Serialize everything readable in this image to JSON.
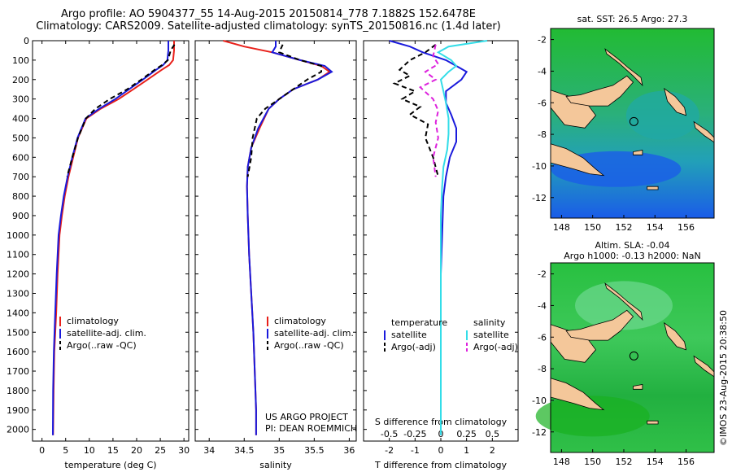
{
  "header": {
    "line1": "Argo profile: AO 5904377_55 14-Aug-2015 20150814_778 7.1882S 152.6478E",
    "line2": "Climatology: CARS2009. Satellite-adjusted climatology: synTS_20150816.nc (1.4d later)"
  },
  "project": {
    "line1": "US ARGO PROJECT",
    "line2": "PI: DEAN ROEMMICH"
  },
  "side_label": "©IMOS 23-Aug-2015 20:38:50",
  "colors": {
    "climatology": "#e8201a",
    "satellite": "#1a1adc",
    "argo": "#000000",
    "sat_salinity": "#33dde8",
    "argo_salinity": "#dd22dd",
    "land": "#f4c79a",
    "ocean_high": "#22bb33",
    "ocean_low": "#1a5ce8"
  },
  "chart_data": [
    {
      "type": "line",
      "xlabel": "temperature (deg C)",
      "ylabel": "",
      "xticks": [
        "0",
        "5",
        "10",
        "15",
        "20",
        "25",
        "30"
      ],
      "yticks": [
        "0",
        "100",
        "200",
        "300",
        "400",
        "500",
        "600",
        "700",
        "800",
        "900",
        "1000",
        "1100",
        "1200",
        "1300",
        "1400",
        "1500",
        "1600",
        "1700",
        "1800",
        "1900",
        "2000"
      ],
      "xlim": [
        -2,
        31
      ],
      "ylim": [
        2060,
        0
      ],
      "legend": [
        "climatology",
        "satellite-adj. clim.",
        "Argo(..raw -QC)"
      ],
      "legend_loc": "lower-center",
      "series": [
        {
          "name": "climatology",
          "color": "red",
          "x": [
            27.9,
            27.9,
            27.7,
            26.9,
            25.3,
            22.3,
            19.3,
            16.2,
            12.4,
            9.4,
            7.6,
            6.6,
            5.6,
            4.8,
            4.2,
            3.7,
            3.3,
            3.0,
            2.6,
            2.45,
            2.35
          ],
          "y": [
            0,
            50,
            100,
            125,
            150,
            200,
            250,
            300,
            350,
            400,
            500,
            600,
            700,
            800,
            900,
            1000,
            1200,
            1400,
            1600,
            1800,
            2030
          ]
        },
        {
          "name": "satellite-adj. clim.",
          "color": "blue",
          "x": [
            26.7,
            26.7,
            26.5,
            25.6,
            24.1,
            21.3,
            18.4,
            15.5,
            12.1,
            9.2,
            7.5,
            6.4,
            5.4,
            4.6,
            4.0,
            3.5,
            3.1,
            2.8,
            2.5,
            2.35,
            2.3
          ],
          "y": [
            0,
            50,
            100,
            125,
            150,
            200,
            250,
            300,
            350,
            400,
            500,
            600,
            700,
            800,
            900,
            1000,
            1200,
            1400,
            1600,
            1800,
            2030
          ]
        },
        {
          "name": "Argo(..raw -QC)",
          "color": "black",
          "x": [
            28.0,
            27.2,
            26.6,
            25.4,
            23.8,
            21.0,
            18.0,
            14.3,
            11.3,
            9.3,
            7.6,
            6.4,
            5.3
          ],
          "y": [
            20,
            50,
            100,
            125,
            150,
            200,
            250,
            300,
            350,
            400,
            500,
            600,
            700
          ]
        }
      ]
    },
    {
      "type": "line",
      "xlabel": "salinity",
      "xticks": [
        "34",
        "34.5",
        "35",
        "35.5",
        "36"
      ],
      "xlim": [
        33.8,
        36.1
      ],
      "ylim": [
        2060,
        0
      ],
      "legend": [
        "climatology",
        "satellite-adj. clim.",
        "Argo(..raw -QC)"
      ],
      "legend_loc": "lower-right",
      "series": [
        {
          "name": "climatology",
          "color": "red",
          "x": [
            34.2,
            34.5,
            34.9,
            35.3,
            35.6,
            35.72,
            35.55,
            35.2,
            35.0,
            34.85,
            34.72,
            34.6,
            34.55,
            34.54,
            34.55,
            34.57,
            34.6,
            34.63,
            34.65,
            34.67,
            34.67
          ],
          "y": [
            0,
            30,
            60,
            100,
            130,
            160,
            200,
            250,
            300,
            350,
            450,
            550,
            650,
            750,
            900,
            1100,
            1300,
            1500,
            1700,
            1900,
            2030
          ]
        },
        {
          "name": "satellite-adj. clim.",
          "color": "blue",
          "x": [
            34.95,
            34.95,
            34.9,
            35.3,
            35.65,
            35.75,
            35.55,
            35.2,
            35.0,
            34.85,
            34.7,
            34.6,
            34.55,
            34.54,
            34.55,
            34.57,
            34.6,
            34.63,
            34.65,
            34.67,
            34.67
          ],
          "y": [
            0,
            30,
            60,
            100,
            130,
            160,
            200,
            250,
            300,
            350,
            450,
            550,
            650,
            750,
            900,
            1100,
            1300,
            1500,
            1700,
            1900,
            2030
          ]
        },
        {
          "name": "Argo(..raw -QC)",
          "color": "black",
          "x": [
            35.05,
            35.0,
            35.3,
            35.6,
            35.6,
            35.4,
            35.2,
            35.0,
            34.8,
            34.68,
            34.62,
            34.6,
            34.55
          ],
          "y": [
            20,
            60,
            100,
            130,
            160,
            200,
            250,
            300,
            350,
            400,
            500,
            600,
            700
          ]
        }
      ]
    },
    {
      "type": "line",
      "xlabel": "T difference from climatology",
      "xlabel_top": "S difference from climatology",
      "xticks": [
        "-2",
        "-1",
        "0",
        "1",
        "2"
      ],
      "xticks_top": [
        "-0.5",
        "-0.25",
        "0",
        "0.25",
        "0.5"
      ],
      "xlim": [
        -3,
        3
      ],
      "ylim": [
        2060,
        0
      ],
      "legend_titles": [
        "temperature",
        "salinity"
      ],
      "legend": [
        "satellite",
        "Argo(-adj)",
        "satellite",
        "Argo(-adj)"
      ],
      "legend_loc": "lower-center",
      "series": [
        {
          "name": "temperature satellite",
          "color": "blue",
          "x": [
            -2.0,
            -1.2,
            -0.7,
            0.2,
            0.6,
            1.0,
            0.8,
            0.2,
            0.2,
            0.4,
            0.6,
            0.6,
            0.35,
            0.2,
            0.1,
            0.05,
            0.0,
            0.0,
            0.0,
            0.0
          ],
          "y": [
            0,
            30,
            60,
            100,
            130,
            160,
            200,
            260,
            320,
            380,
            450,
            520,
            600,
            700,
            800,
            1000,
            1200,
            1500,
            1800,
            2030
          ]
        },
        {
          "name": "temperature Argo(-adj)",
          "color": "black",
          "x": [
            -0.2,
            -0.6,
            -1.2,
            -1.6,
            -1.2,
            -1.8,
            -1.0,
            -1.5,
            -0.8,
            -1.2,
            -0.5,
            -0.6,
            -0.3,
            -0.1
          ],
          "y": [
            20,
            60,
            100,
            150,
            180,
            220,
            260,
            300,
            340,
            380,
            430,
            500,
            600,
            700
          ]
        },
        {
          "name": "salinity satellite",
          "color": "cyan",
          "x": [
            1.8,
            0.3,
            -0.1,
            0.4,
            0.6,
            0.3,
            0.0,
            0.1,
            0.2,
            0.3,
            0.3,
            0.25,
            0.1,
            0.05,
            0.0,
            0.0,
            0.0,
            0.0
          ],
          "y": [
            0,
            30,
            60,
            100,
            130,
            160,
            200,
            260,
            320,
            400,
            480,
            560,
            650,
            750,
            900,
            1200,
            1600,
            2030
          ]
        },
        {
          "name": "salinity Argo(-adj)",
          "color": "magenta",
          "x": [
            -0.2,
            -0.3,
            -0.1,
            -0.6,
            -0.2,
            -0.8,
            -0.3,
            -0.1,
            -0.2,
            -0.1,
            -0.3,
            -0.2
          ],
          "y": [
            20,
            80,
            120,
            160,
            200,
            240,
            300,
            360,
            420,
            500,
            600,
            700
          ]
        }
      ]
    }
  ],
  "maps": [
    {
      "title1": "sat. SST: 26.5 Argo: 27.3",
      "title2": "",
      "xticks": [
        "148",
        "150",
        "152",
        "154",
        "156"
      ],
      "yticks": [
        "-2",
        "-4",
        "-6",
        "-8",
        "-10",
        "-12"
      ],
      "argo_lon": 152.6478,
      "argo_lat": -7.1882,
      "field": "sst"
    },
    {
      "title1": "Altim. SLA: -0.04",
      "title2": "Argo h1000: -0.13 h2000: NaN",
      "xticks": [
        "148",
        "150",
        "152",
        "154",
        "156"
      ],
      "yticks": [
        "-2",
        "-4",
        "-6",
        "-8",
        "-10",
        "-12"
      ],
      "argo_lon": 152.6478,
      "argo_lat": -7.1882,
      "field": "sla"
    }
  ]
}
